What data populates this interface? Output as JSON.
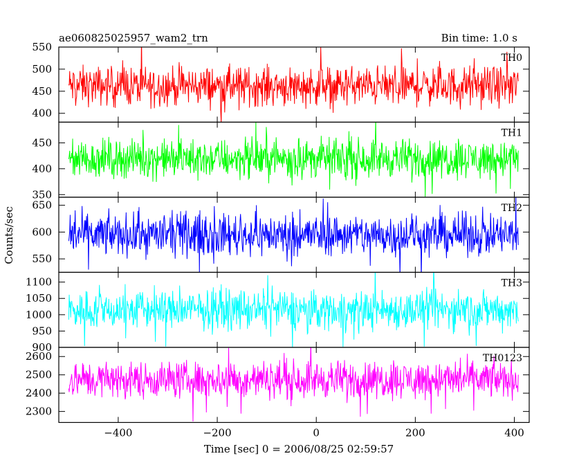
{
  "chart_data": {
    "type": "line",
    "header_left": "ae060825025957_wam2_trn",
    "header_right": "Bin time: 1.0 s",
    "xlabel": "Time [sec] 0 = 2006/08/25 02:59:57",
    "ylabel": "Counts/sec",
    "xlim": [
      -520,
      430
    ],
    "x_range": [
      -500,
      408
    ],
    "x_ticks": [
      -400,
      -200,
      0,
      200,
      400
    ],
    "x_tick_labels": [
      "−400",
      "−200",
      "0",
      "200",
      "400"
    ],
    "bin_time_s": 1.0,
    "panels": [
      {
        "name": "TH0",
        "color": "#ff0000",
        "ylim": [
          380,
          550
        ],
        "y_ticks": [
          400,
          450,
          500,
          550
        ],
        "y_tick_labels": [
          "400",
          "450",
          "500",
          "550"
        ],
        "mean": 462,
        "noise_halfwidth": 48
      },
      {
        "name": "TH1",
        "color": "#00ff00",
        "ylim": [
          345,
          490
        ],
        "y_ticks": [
          350,
          400,
          450
        ],
        "y_tick_labels": [
          "350",
          "400",
          "450"
        ],
        "mean": 420,
        "noise_halfwidth": 40
      },
      {
        "name": "TH2",
        "color": "#0000ff",
        "ylim": [
          525,
          665
        ],
        "y_ticks": [
          550,
          600,
          650
        ],
        "y_tick_labels": [
          "550",
          "600",
          "650"
        ],
        "mean": 595,
        "noise_halfwidth": 42
      },
      {
        "name": "TH3",
        "color": "#00ffff",
        "ylim": [
          900,
          1130
        ],
        "y_ticks": [
          900,
          950,
          1000,
          1050,
          1100
        ],
        "y_tick_labels": [
          "900",
          "950",
          "1000",
          "1050",
          "1100"
        ],
        "mean": 1015,
        "noise_halfwidth": 65
      },
      {
        "name": "TH0123",
        "color": "#ff00ff",
        "ylim": [
          2240,
          2650
        ],
        "y_ticks": [
          2300,
          2400,
          2500,
          2600
        ],
        "y_tick_labels": [
          "2300",
          "2400",
          "2500",
          "2600"
        ],
        "mean": 2475,
        "noise_halfwidth": 110
      }
    ]
  }
}
